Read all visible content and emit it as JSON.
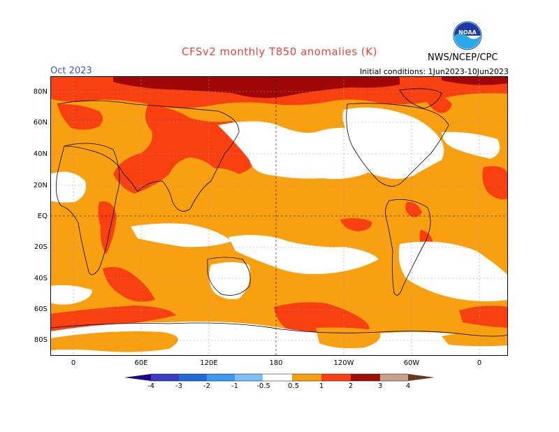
{
  "header": {
    "title": "CFSv2 monthly T850 anomalies (K)",
    "month": "Oct 2023",
    "initial_conditions": "Initial conditions: 1Jun2023-10Jun2023",
    "agency": "NWS/NCEP/CPC",
    "logo_text": "NOAA"
  },
  "axes": {
    "lat_labels": [
      "80N",
      "60N",
      "40N",
      "20N",
      "EQ",
      "20S",
      "40S",
      "60S",
      "80S"
    ],
    "lon_labels": [
      "0",
      "60E",
      "120E",
      "180",
      "120W",
      "60W",
      "0"
    ]
  },
  "colorbar": {
    "labels": [
      "-4",
      "-3",
      "-2",
      "-1",
      "-0.5",
      "0.5",
      "1",
      "2",
      "3",
      "4"
    ],
    "colors": [
      "#1a0a8a",
      "#3c3cc8",
      "#1f6ad8",
      "#3a9af0",
      "#7cc0f8",
      "#ffffff",
      "#f8a010",
      "#f84010",
      "#a01008",
      "#c8a090",
      "#6a3828"
    ]
  },
  "map": {
    "field": "T850 anomaly",
    "units": "K",
    "colors": {
      "white": "#ffffff",
      "orange": "#f8a010",
      "red": "#f84010",
      "darkred": "#a00808"
    }
  }
}
